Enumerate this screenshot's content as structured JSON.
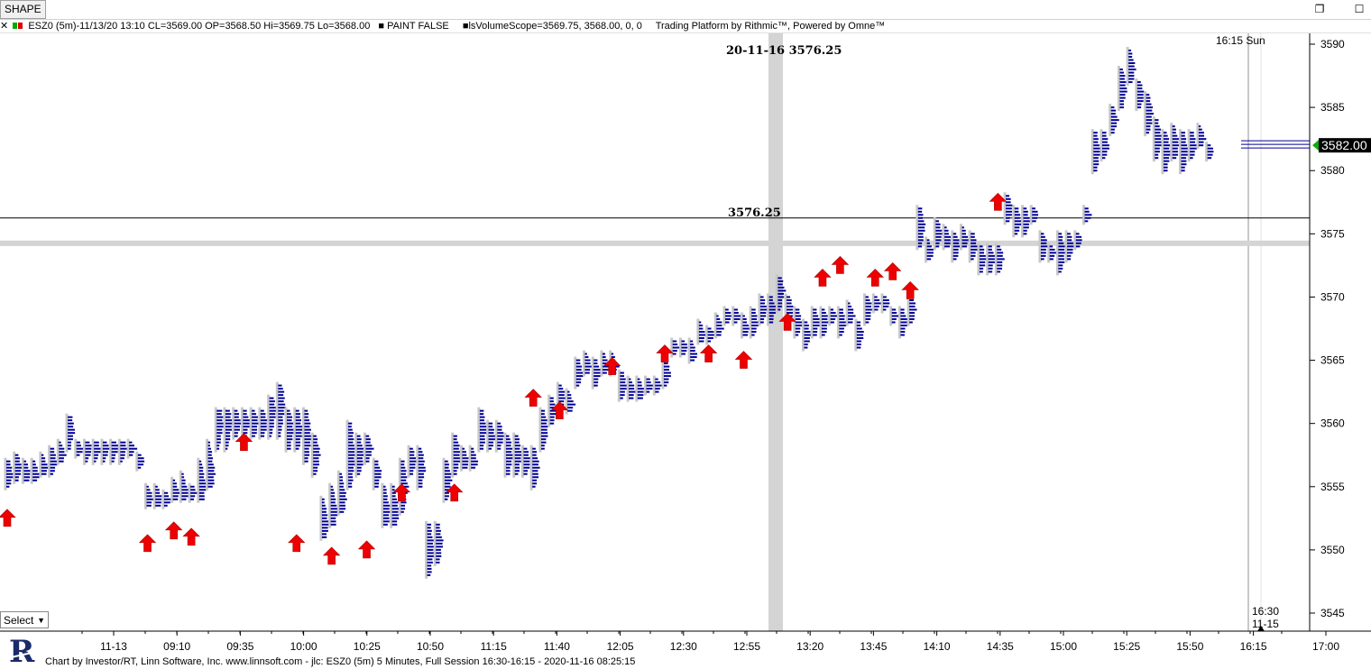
{
  "window": {
    "title": "SHAPE",
    "restore_icon": "restore-icon",
    "close_icon": "close-icon"
  },
  "infobar": {
    "symbol_info": "ESZ0 (5m)-11/13/20 13:10 CL=3569.00 OP=3568.50 Hi=3569.75 Lo=3568.00",
    "paint": "PAINT FALSE",
    "volume_scope": "lsVolumeScope=3569.75, 3568.00, 0, 0",
    "platform": "Trading Platform by Rithmic™, Powered by Omne™"
  },
  "crosshair": {
    "label": "20-11-16  3576.25",
    "price_label": "3576.25",
    "price": 3576.25
  },
  "session_label": "16:15  Sun",
  "current_price": "3582.00",
  "current_price_value": 3582.0,
  "end_marker": {
    "time": "16:30",
    "date": "11-15"
  },
  "select_label": "Select",
  "footer": "Chart by Investor/RT, Linn Software, Inc. www.linnsoft.com - jlc: ESZ0 (5m) 5 Minutes, Full Session 16:30-16:15 - 2020-11-16 08:25:15",
  "colors": {
    "profile_blue": "#000099",
    "profile_gray": "#c8c8c8",
    "arrow_red": "#ee0000",
    "price_green": "#11aa11"
  },
  "chart_data": {
    "type": "volume_profile_candles",
    "y_axis": {
      "min": 3545,
      "max": 3590,
      "ticks": [
        "3590",
        "3585",
        "3580",
        "3575",
        "3570",
        "3565",
        "3560",
        "3555",
        "3550",
        "3545"
      ],
      "tick_values": [
        3590,
        3585,
        3580,
        3575,
        3570,
        3565,
        3560,
        3555,
        3550,
        3545
      ]
    },
    "x_axis": {
      "ticks": [
        "11-13",
        "09:10",
        "09:35",
        "10:00",
        "10:25",
        "10:50",
        "11:15",
        "11:40",
        "12:05",
        "12:30",
        "12:55",
        "13:20",
        "13:45",
        "14:10",
        "14:35",
        "15:00",
        "15:25",
        "15:50",
        "16:15",
        "17:00"
      ]
    },
    "horizontal_lines": [
      3576.25,
      3574.25
    ],
    "bars": [
      {
        "lo": 3555,
        "hi": 3557,
        "hd": 3556
      },
      {
        "lo": 3555.5,
        "hi": 3557.5,
        "hd": 3556.5
      },
      {
        "lo": 3555.5,
        "hi": 3557,
        "hd": 3556
      },
      {
        "lo": 3555.5,
        "hi": 3557,
        "hd": 3556
      },
      {
        "lo": 3556,
        "hi": 3557.5,
        "hd": 3556.5
      },
      {
        "lo": 3556,
        "hi": 3558,
        "hd": 3557
      },
      {
        "lo": 3557,
        "hi": 3558.5,
        "hd": 3557.5
      },
      {
        "lo": 3558,
        "hi": 3560.5,
        "hd": 3559.5
      },
      {
        "lo": 3557.5,
        "hi": 3558.5,
        "hd": 3558
      },
      {
        "lo": 3557,
        "hi": 3558.5,
        "hd": 3558
      },
      {
        "lo": 3557,
        "hi": 3558.5,
        "hd": 3558
      },
      {
        "lo": 3557,
        "hi": 3558.5,
        "hd": 3558
      },
      {
        "lo": 3557,
        "hi": 3558.5,
        "hd": 3558
      },
      {
        "lo": 3557,
        "hi": 3558.5,
        "hd": 3558
      },
      {
        "lo": 3557.5,
        "hi": 3558.5,
        "hd": 3558
      },
      {
        "lo": 3556.5,
        "hi": 3557.5,
        "hd": 3557
      },
      {
        "lo": 3553.5,
        "hi": 3555,
        "hd": 3554
      },
      {
        "lo": 3553.5,
        "hi": 3555,
        "hd": 3554
      },
      {
        "lo": 3553.5,
        "hi": 3554.5,
        "hd": 3554
      },
      {
        "lo": 3554,
        "hi": 3555.5,
        "hd": 3554.5
      },
      {
        "lo": 3554,
        "hi": 3556,
        "hd": 3554.5
      },
      {
        "lo": 3554,
        "hi": 3555,
        "hd": 3554.5
      },
      {
        "lo": 3554,
        "hi": 3557,
        "hd": 3555
      },
      {
        "lo": 3555,
        "hi": 3558.5,
        "hd": 3556
      },
      {
        "lo": 3558,
        "hi": 3561,
        "hd": 3560
      },
      {
        "lo": 3558,
        "hi": 3561,
        "hd": 3560
      },
      {
        "lo": 3559,
        "hi": 3561,
        "hd": 3560
      },
      {
        "lo": 3559,
        "hi": 3561,
        "hd": 3560
      },
      {
        "lo": 3559,
        "hi": 3561,
        "hd": 3560
      },
      {
        "lo": 3559,
        "hi": 3561,
        "hd": 3560
      },
      {
        "lo": 3559,
        "hi": 3562,
        "hd": 3561
      },
      {
        "lo": 3559,
        "hi": 3563,
        "hd": 3561.5
      },
      {
        "lo": 3558,
        "hi": 3561,
        "hd": 3559.5
      },
      {
        "lo": 3558,
        "hi": 3561,
        "hd": 3559.5
      },
      {
        "lo": 3557,
        "hi": 3561,
        "hd": 3559
      },
      {
        "lo": 3556,
        "hi": 3559,
        "hd": 3557.5
      },
      {
        "lo": 3551,
        "hi": 3554,
        "hd": 3552
      },
      {
        "lo": 3552,
        "hi": 3555,
        "hd": 3553
      },
      {
        "lo": 3553,
        "hi": 3556,
        "hd": 3554
      },
      {
        "lo": 3555,
        "hi": 3560,
        "hd": 3557.5
      },
      {
        "lo": 3556,
        "hi": 3559,
        "hd": 3557.5
      },
      {
        "lo": 3557,
        "hi": 3559,
        "hd": 3558
      },
      {
        "lo": 3555,
        "hi": 3557,
        "hd": 3556
      },
      {
        "lo": 3552,
        "hi": 3555,
        "hd": 3553
      },
      {
        "lo": 3552,
        "hi": 3555,
        "hd": 3553
      },
      {
        "lo": 3553,
        "hi": 3557,
        "hd": 3555
      },
      {
        "lo": 3556,
        "hi": 3558,
        "hd": 3557
      },
      {
        "lo": 3555,
        "hi": 3558,
        "hd": 3556.5
      },
      {
        "lo": 3548,
        "hi": 3552,
        "hd": 3550
      },
      {
        "lo": 3549,
        "hi": 3552,
        "hd": 3550.5
      },
      {
        "lo": 3554,
        "hi": 3557,
        "hd": 3555.5
      },
      {
        "lo": 3556,
        "hi": 3559,
        "hd": 3557.5
      },
      {
        "lo": 3556.5,
        "hi": 3558,
        "hd": 3557
      },
      {
        "lo": 3556.5,
        "hi": 3558,
        "hd": 3557
      },
      {
        "lo": 3558,
        "hi": 3561,
        "hd": 3559.5
      },
      {
        "lo": 3558,
        "hi": 3560,
        "hd": 3559
      },
      {
        "lo": 3558,
        "hi": 3560,
        "hd": 3559
      },
      {
        "lo": 3556,
        "hi": 3559,
        "hd": 3557.5
      },
      {
        "lo": 3556,
        "hi": 3559,
        "hd": 3557.5
      },
      {
        "lo": 3556,
        "hi": 3558,
        "hd": 3557
      },
      {
        "lo": 3555,
        "hi": 3558,
        "hd": 3556.5
      },
      {
        "lo": 3558,
        "hi": 3561,
        "hd": 3559.5
      },
      {
        "lo": 3560,
        "hi": 3562,
        "hd": 3561
      },
      {
        "lo": 3561,
        "hi": 3563,
        "hd": 3562
      },
      {
        "lo": 3561,
        "hi": 3562.5,
        "hd": 3561.5
      },
      {
        "lo": 3563,
        "hi": 3565,
        "hd": 3564
      },
      {
        "lo": 3564,
        "hi": 3565.5,
        "hd": 3564.5
      },
      {
        "lo": 3563,
        "hi": 3565,
        "hd": 3564
      },
      {
        "lo": 3564,
        "hi": 3565.5,
        "hd": 3564.5
      },
      {
        "lo": 3564,
        "hi": 3565.5,
        "hd": 3564.5
      },
      {
        "lo": 3562,
        "hi": 3564,
        "hd": 3563
      },
      {
        "lo": 3562,
        "hi": 3563.5,
        "hd": 3562.5
      },
      {
        "lo": 3562,
        "hi": 3563.5,
        "hd": 3562.5
      },
      {
        "lo": 3562.5,
        "hi": 3563.5,
        "hd": 3563
      },
      {
        "lo": 3562.5,
        "hi": 3563.5,
        "hd": 3563
      },
      {
        "lo": 3563,
        "hi": 3565,
        "hd": 3564
      },
      {
        "lo": 3565.5,
        "hi": 3566.5,
        "hd": 3566
      },
      {
        "lo": 3565.5,
        "hi": 3566.5,
        "hd": 3566
      },
      {
        "lo": 3565,
        "hi": 3566.5,
        "hd": 3565.5
      },
      {
        "lo": 3566.5,
        "hi": 3568,
        "hd": 3567
      },
      {
        "lo": 3566.5,
        "hi": 3567.5,
        "hd": 3567
      },
      {
        "lo": 3567,
        "hi": 3568.5,
        "hd": 3567.5
      },
      {
        "lo": 3568,
        "hi": 3569,
        "hd": 3568.5
      },
      {
        "lo": 3568,
        "hi": 3569,
        "hd": 3568.5
      },
      {
        "lo": 3567,
        "hi": 3568.5,
        "hd": 3567.5
      },
      {
        "lo": 3567,
        "hi": 3569,
        "hd": 3568
      },
      {
        "lo": 3568,
        "hi": 3570,
        "hd": 3569
      },
      {
        "lo": 3568,
        "hi": 3570,
        "hd": 3569
      },
      {
        "lo": 3569,
        "hi": 3571.5,
        "hd": 3570.5
      },
      {
        "lo": 3568,
        "hi": 3570,
        "hd": 3569
      },
      {
        "lo": 3567,
        "hi": 3569,
        "hd": 3568
      },
      {
        "lo": 3566,
        "hi": 3568,
        "hd": 3567
      },
      {
        "lo": 3567,
        "hi": 3569,
        "hd": 3568
      },
      {
        "lo": 3567,
        "hi": 3569,
        "hd": 3568
      },
      {
        "lo": 3568,
        "hi": 3569,
        "hd": 3568.5
      },
      {
        "lo": 3567,
        "hi": 3569,
        "hd": 3568
      },
      {
        "lo": 3568,
        "hi": 3569.5,
        "hd": 3568.5
      },
      {
        "lo": 3566,
        "hi": 3568,
        "hd": 3567
      },
      {
        "lo": 3568,
        "hi": 3570,
        "hd": 3569
      },
      {
        "lo": 3569,
        "hi": 3570,
        "hd": 3569.5
      },
      {
        "lo": 3569,
        "hi": 3570,
        "hd": 3569.5
      },
      {
        "lo": 3568,
        "hi": 3569,
        "hd": 3568.5
      },
      {
        "lo": 3567,
        "hi": 3569,
        "hd": 3568
      },
      {
        "lo": 3568,
        "hi": 3570,
        "hd": 3569
      },
      {
        "lo": 3574,
        "hi": 3577,
        "hd": 3575.5
      },
      {
        "lo": 3573,
        "hi": 3574.5,
        "hd": 3573.5
      },
      {
        "lo": 3574,
        "hi": 3576,
        "hd": 3575
      },
      {
        "lo": 3574,
        "hi": 3575.5,
        "hd": 3574.5
      },
      {
        "lo": 3573,
        "hi": 3575,
        "hd": 3574
      },
      {
        "lo": 3574,
        "hi": 3575.5,
        "hd": 3574.5
      },
      {
        "lo": 3573,
        "hi": 3575,
        "hd": 3574
      },
      {
        "lo": 3572,
        "hi": 3574,
        "hd": 3573
      },
      {
        "lo": 3572,
        "hi": 3574,
        "hd": 3573
      },
      {
        "lo": 3572,
        "hi": 3574,
        "hd": 3573
      },
      {
        "lo": 3576,
        "hi": 3578,
        "hd": 3577
      },
      {
        "lo": 3575,
        "hi": 3577,
        "hd": 3576
      },
      {
        "lo": 3575,
        "hi": 3577,
        "hd": 3576
      },
      {
        "lo": 3576,
        "hi": 3577,
        "hd": 3576.5
      },
      {
        "lo": 3573,
        "hi": 3575,
        "hd": 3574
      },
      {
        "lo": 3573,
        "hi": 3574,
        "hd": 3573.5
      },
      {
        "lo": 3572,
        "hi": 3575,
        "hd": 3573.5
      },
      {
        "lo": 3573,
        "hi": 3575,
        "hd": 3574
      },
      {
        "lo": 3574,
        "hi": 3575,
        "hd": 3574.5
      },
      {
        "lo": 3576,
        "hi": 3577,
        "hd": 3576.5
      },
      {
        "lo": 3580,
        "hi": 3583,
        "hd": 3581.5
      },
      {
        "lo": 3581,
        "hi": 3583,
        "hd": 3582
      },
      {
        "lo": 3583,
        "hi": 3585,
        "hd": 3584
      },
      {
        "lo": 3585,
        "hi": 3588,
        "hd": 3586.5
      },
      {
        "lo": 3587,
        "hi": 3589.5,
        "hd": 3588
      },
      {
        "lo": 3585,
        "hi": 3587,
        "hd": 3586
      },
      {
        "lo": 3583,
        "hi": 3586,
        "hd": 3584.5
      },
      {
        "lo": 3581,
        "hi": 3584,
        "hd": 3582.5
      },
      {
        "lo": 3580,
        "hi": 3583,
        "hd": 3581.5
      },
      {
        "lo": 3581,
        "hi": 3583.5,
        "hd": 3582
      },
      {
        "lo": 3580,
        "hi": 3583,
        "hd": 3581.5
      },
      {
        "lo": 3581,
        "hi": 3583,
        "hd": 3582
      },
      {
        "lo": 3582,
        "hi": 3583.5,
        "hd": 3582.5
      },
      {
        "lo": 3581,
        "hi": 3582,
        "hd": 3581.5
      }
    ],
    "arrows": [
      {
        "bar": 0,
        "price": 3552.5
      },
      {
        "bar": 16,
        "price": 3550.5
      },
      {
        "bar": 19,
        "price": 3551.5
      },
      {
        "bar": 21,
        "price": 3551
      },
      {
        "bar": 27,
        "price": 3558.5
      },
      {
        "bar": 33,
        "price": 3550.5
      },
      {
        "bar": 37,
        "price": 3549.5
      },
      {
        "bar": 41,
        "price": 3550
      },
      {
        "bar": 45,
        "price": 3554.5
      },
      {
        "bar": 51,
        "price": 3554.5
      },
      {
        "bar": 60,
        "price": 3562
      },
      {
        "bar": 63,
        "price": 3561
      },
      {
        "bar": 69,
        "price": 3564.5
      },
      {
        "bar": 75,
        "price": 3565.5
      },
      {
        "bar": 80,
        "price": 3565.5
      },
      {
        "bar": 84,
        "price": 3565
      },
      {
        "bar": 89,
        "price": 3568
      },
      {
        "bar": 93,
        "price": 3571.5
      },
      {
        "bar": 95,
        "price": 3572.5
      },
      {
        "bar": 99,
        "price": 3571.5
      },
      {
        "bar": 101,
        "price": 3572
      },
      {
        "bar": 103,
        "price": 3570.5
      },
      {
        "bar": 113,
        "price": 3577.5
      }
    ]
  }
}
